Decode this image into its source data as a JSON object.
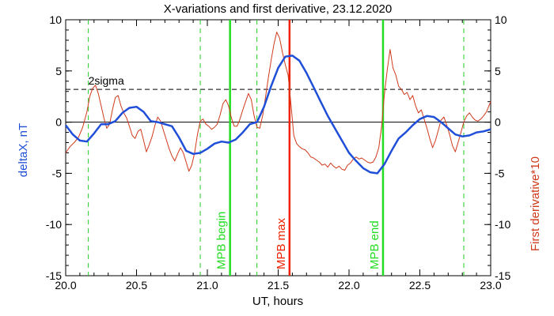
{
  "chart_data": {
    "type": "line",
    "title": "X-variations and first derivative, 23.12.2020",
    "xlabel": "UT, hours",
    "ylabel_left": "deltaX, nT",
    "ylabel_right": "First derivative*10",
    "xlim": [
      20.0,
      23.0
    ],
    "ylim": [
      -15,
      10
    ],
    "xticks": [
      "20.0",
      "20.5",
      "21.0",
      "21.5",
      "22.0",
      "22.5",
      "23.0"
    ],
    "yticks": [
      "10",
      "5",
      "0",
      "-5",
      "-10",
      "-15"
    ],
    "y2ticks": [
      "10",
      "5",
      "0",
      "-5",
      "-10",
      "-15"
    ],
    "zero_line": 0,
    "sigma_line": {
      "label": "2sigma",
      "y": 3.2
    },
    "colors": {
      "deltaX": "#1f4fd8",
      "derivative": "#d03a1c",
      "mpb_green": "#22dd22",
      "mpb_red": "#ee2200",
      "dashed_green": "#22cc22"
    },
    "dashed_markers": [
      20.16,
      20.95,
      21.35,
      22.81
    ],
    "markers": [
      {
        "label": "MPB begin",
        "x": 21.16,
        "color": "#22dd22"
      },
      {
        "label": "MPB max",
        "x": 21.58,
        "color": "#ee2200"
      },
      {
        "label": "MPB end",
        "x": 22.24,
        "color": "#22dd22"
      }
    ],
    "series": [
      {
        "name": "deltaX",
        "axis": "left",
        "x": [
          20.0,
          20.05,
          20.1,
          20.15,
          20.2,
          20.25,
          20.3,
          20.35,
          20.4,
          20.45,
          20.5,
          20.55,
          20.6,
          20.65,
          20.7,
          20.75,
          20.8,
          20.85,
          20.9,
          20.95,
          21.0,
          21.05,
          21.1,
          21.15,
          21.2,
          21.25,
          21.3,
          21.35,
          21.4,
          21.45,
          21.5,
          21.55,
          21.6,
          21.65,
          21.7,
          21.75,
          21.8,
          21.85,
          21.9,
          21.95,
          22.0,
          22.05,
          22.1,
          22.15,
          22.2,
          22.25,
          22.3,
          22.35,
          22.4,
          22.45,
          22.5,
          22.55,
          22.6,
          22.65,
          22.7,
          22.75,
          22.8,
          22.85,
          22.9,
          22.95,
          23.0
        ],
        "y": [
          -0.3,
          -1.2,
          -1.8,
          -1.9,
          -1.1,
          -0.2,
          -0.2,
          0.1,
          0.9,
          1.4,
          1.5,
          1.0,
          0.1,
          0.0,
          -0.2,
          -0.4,
          -1.5,
          -2.8,
          -3.1,
          -3.0,
          -2.6,
          -2.1,
          -1.9,
          -2.0,
          -1.7,
          -1.0,
          -0.2,
          0.0,
          1.5,
          3.5,
          5.3,
          6.4,
          6.5,
          6.0,
          4.8,
          3.4,
          2.0,
          0.6,
          -0.6,
          -1.8,
          -3.0,
          -3.8,
          -4.5,
          -4.9,
          -5.0,
          -4.1,
          -2.8,
          -1.6,
          -1.0,
          -0.3,
          0.3,
          0.6,
          0.5,
          0.0,
          -0.6,
          -1.2,
          -1.4,
          -1.3,
          -1.0,
          -0.9,
          -0.7
        ]
      },
      {
        "name": "First derivative*10",
        "axis": "right",
        "x": [
          20.0,
          20.03,
          20.06,
          20.09,
          20.12,
          20.15,
          20.17,
          20.19,
          20.21,
          20.23,
          20.25,
          20.27,
          20.29,
          20.31,
          20.33,
          20.35,
          20.37,
          20.39,
          20.41,
          20.43,
          20.45,
          20.47,
          20.49,
          20.51,
          20.53,
          20.55,
          20.57,
          20.59,
          20.61,
          20.63,
          20.65,
          20.67,
          20.69,
          20.71,
          20.73,
          20.75,
          20.77,
          20.79,
          20.81,
          20.83,
          20.85,
          20.87,
          20.89,
          20.91,
          20.93,
          20.95,
          20.97,
          20.99,
          21.01,
          21.03,
          21.05,
          21.07,
          21.09,
          21.11,
          21.13,
          21.15,
          21.17,
          21.19,
          21.21,
          21.23,
          21.25,
          21.27,
          21.29,
          21.31,
          21.33,
          21.35,
          21.37,
          21.39,
          21.41,
          21.43,
          21.45,
          21.47,
          21.49,
          21.51,
          21.53,
          21.55,
          21.57,
          21.59,
          21.61,
          21.63,
          21.65,
          21.67,
          21.69,
          21.71,
          21.73,
          21.75,
          21.77,
          21.79,
          21.81,
          21.83,
          21.85,
          21.87,
          21.89,
          21.91,
          21.93,
          21.95,
          21.97,
          21.99,
          22.01,
          22.03,
          22.05,
          22.07,
          22.09,
          22.11,
          22.13,
          22.15,
          22.17,
          22.19,
          22.21,
          22.23,
          22.25,
          22.27,
          22.29,
          22.31,
          22.33,
          22.35,
          22.37,
          22.39,
          22.41,
          22.43,
          22.45,
          22.47,
          22.49,
          22.51,
          22.53,
          22.55,
          22.57,
          22.59,
          22.61,
          22.63,
          22.65,
          22.67,
          22.69,
          22.71,
          22.73,
          22.75,
          22.77,
          22.79,
          22.81,
          22.83,
          22.85,
          22.87,
          22.89,
          22.91,
          22.93,
          22.95,
          22.97,
          23.0
        ],
        "y": [
          -3.0,
          -2.4,
          -2.0,
          -1.5,
          -0.5,
          1.0,
          2.5,
          3.3,
          3.6,
          2.8,
          1.6,
          0.4,
          -0.6,
          -0.2,
          1.2,
          2.4,
          2.6,
          1.6,
          0.9,
          0.4,
          -0.4,
          -1.3,
          -1.6,
          -0.9,
          -0.7,
          -1.8,
          -2.9,
          -2.2,
          -1.4,
          -0.3,
          0.5,
          0.1,
          -0.8,
          -1.7,
          -2.6,
          -3.3,
          -3.8,
          -3.1,
          -2.5,
          -3.0,
          -3.9,
          -4.8,
          -4.2,
          -3.0,
          -1.2,
          0.1,
          0.3,
          -0.2,
          -0.4,
          -0.7,
          -0.5,
          -0.2,
          0.7,
          1.8,
          2.2,
          1.6,
          0.4,
          -0.4,
          -0.4,
          0.3,
          1.2,
          2.0,
          2.8,
          2.2,
          0.6,
          -0.5,
          -0.6,
          0.6,
          2.4,
          4.3,
          6.0,
          7.6,
          8.8,
          8.2,
          6.8,
          5.6,
          4.6,
          1.8,
          -1.3,
          -2.1,
          -2.4,
          -2.6,
          -2.7,
          -3.0,
          -3.4,
          -3.5,
          -3.7,
          -3.9,
          -4.2,
          -4.1,
          -4.4,
          -4.0,
          -4.3,
          -4.5,
          -4.3,
          -4.6,
          -4.7,
          -4.2,
          -4.0,
          -3.6,
          -3.4,
          -3.6,
          -3.5,
          -3.7,
          -3.9,
          -4.0,
          -3.9,
          -3.4,
          -2.5,
          -0.4,
          2.8,
          5.1,
          7.1,
          5.3,
          4.6,
          3.5,
          3.2,
          2.7,
          2.9,
          2.2,
          2.6,
          1.6,
          0.9,
          1.2,
          0.3,
          -0.6,
          -1.6,
          -2.5,
          -1.8,
          -0.8,
          0.2,
          0.5,
          -0.3,
          -1.2,
          -2.3,
          -2.9,
          -2.0,
          -1.0,
          0.0,
          0.6,
          0.9,
          0.5,
          0.2,
          0.1,
          0.3,
          0.6,
          1.0,
          2.0
        ]
      }
    ]
  }
}
